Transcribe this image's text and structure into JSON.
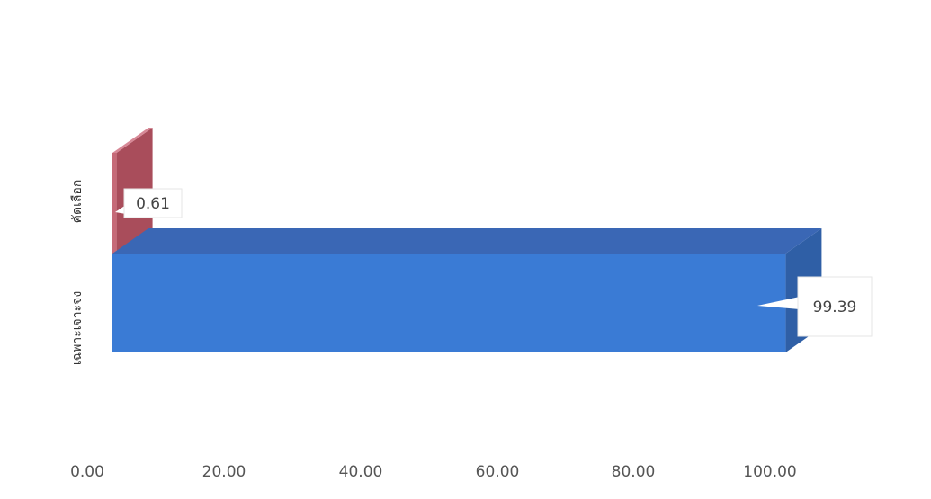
{
  "chart_data": {
    "type": "bar",
    "orientation": "horizontal",
    "style": "3d",
    "categories": [
      "คัดเลือก",
      "เฉพาะเจาะจง"
    ],
    "values": [
      0.61,
      99.39
    ],
    "data_labels": [
      "0.61",
      "99.39"
    ],
    "xlim": [
      0,
      100
    ],
    "x_ticks": [
      0,
      20,
      40,
      60,
      80,
      100
    ],
    "x_tick_labels": [
      "0.00",
      "20.00",
      "40.00",
      "60.00",
      "80.00",
      "100.00"
    ],
    "grid": false,
    "legend": "none",
    "colors": [
      "#c66a78",
      "#3a7bd5"
    ],
    "side_colors": [
      "#a94d5b",
      "#2f5fa6"
    ],
    "top_colors": [
      "#d78896",
      "#3a67b5"
    ]
  }
}
